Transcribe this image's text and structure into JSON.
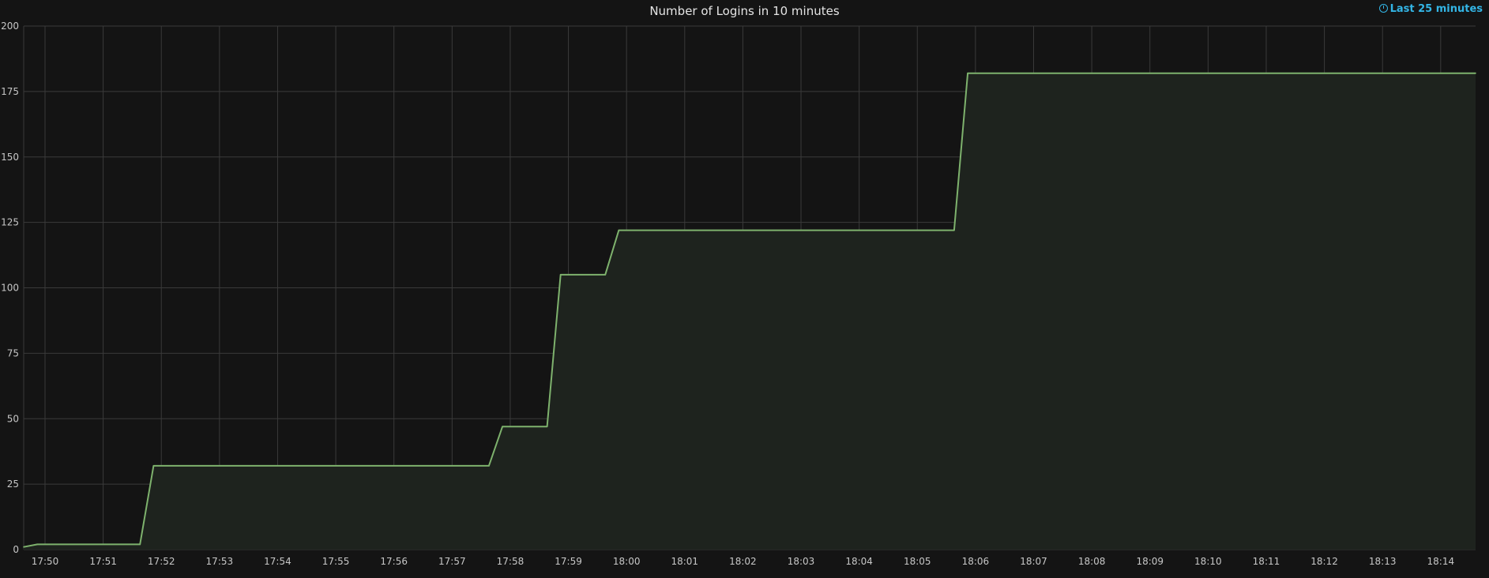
{
  "panel": {
    "title": "Number of Logins in 10 minutes",
    "time_range_label": "Last 25 minutes",
    "time_range_icon": "clock-icon"
  },
  "colors": {
    "background": "#141414",
    "grid": "#3a3a3a",
    "series_line": "#7eb26d",
    "series_fill": "#1e231e",
    "accent": "#33b5e5"
  },
  "chart_data": {
    "type": "area",
    "title": "Number of Logins in 10 minutes",
    "xlabel": "",
    "ylabel": "",
    "x_unit": "minutes",
    "xlim": [
      "17:49:38",
      "18:14:36"
    ],
    "ylim": [
      0,
      200
    ],
    "y_ticks": [
      0,
      25,
      50,
      75,
      100,
      125,
      150,
      175,
      200
    ],
    "x_ticks": [
      "17:50",
      "17:51",
      "17:52",
      "17:53",
      "17:54",
      "17:55",
      "17:56",
      "17:57",
      "17:58",
      "17:59",
      "18:00",
      "18:01",
      "18:02",
      "18:03",
      "18:04",
      "18:05",
      "18:06",
      "18:07",
      "18:08",
      "18:09",
      "18:10",
      "18:11",
      "18:12",
      "18:13",
      "18:14"
    ],
    "grid": true,
    "legend": "none",
    "series": [
      {
        "x": [
          "17:49:38",
          "17:49:52",
          "17:51:38",
          "17:51:52",
          "17:57:38",
          "17:57:52",
          "17:58:38",
          "17:58:52",
          "17:59:38",
          "17:59:52",
          "18:05:38",
          "18:05:52",
          "18:14:36"
        ],
        "values": [
          1,
          2,
          2,
          32,
          32,
          47,
          47,
          105,
          105,
          122,
          122,
          182,
          182
        ]
      }
    ]
  }
}
